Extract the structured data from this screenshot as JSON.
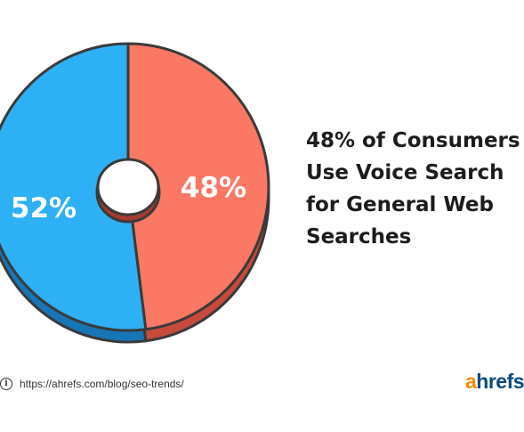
{
  "chart_data": {
    "type": "pie",
    "title": "48% of Consumers Use Voice Search for General Web Searches",
    "title_lines": [
      "48% of Consumers",
      "Use Voice Search",
      "for General Web",
      "Searches"
    ],
    "slices": [
      {
        "label": "48%",
        "value": 48,
        "color": "#fa7864",
        "side_color": "#c84a3c"
      },
      {
        "label": "52%",
        "value": 52,
        "color": "#2eb0f4",
        "side_color": "#1676b8"
      }
    ],
    "outline_color": "#3a3a3a",
    "donut_hole": true
  },
  "source": {
    "icon": "info-icon",
    "url": "https://ahrefs.com/blog/seo-trends/"
  },
  "logo": {
    "brand_first": "a",
    "brand_rest": "hrefs",
    "first_color": "#ff8800",
    "rest_color": "#0a4a7a"
  }
}
